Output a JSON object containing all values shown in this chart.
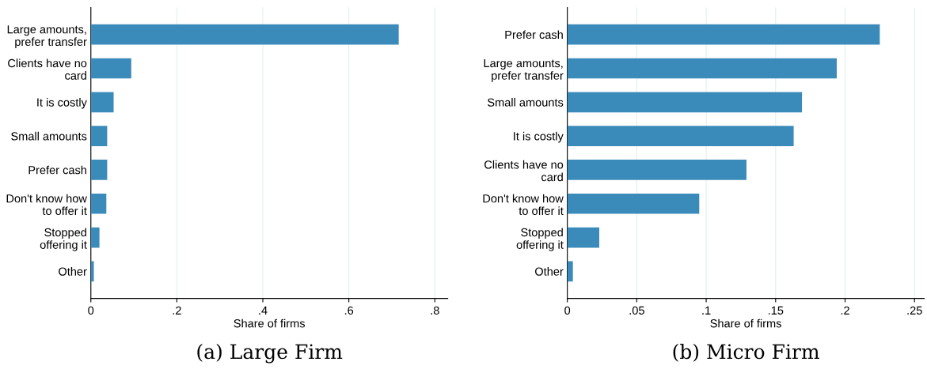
{
  "chart_data": [
    {
      "type": "bar",
      "orientation": "horizontal",
      "title": "(a) Large Firm",
      "xlabel": "Share of firms",
      "categories": [
        "Large amounts,\nprefer transfer",
        "Clients have no\ncard",
        "It is costly",
        "Small amounts",
        "Prefer cash",
        "Don't know how\nto offer it",
        "Stopped\noffering it",
        "Other"
      ],
      "values": [
        0.716,
        0.094,
        0.053,
        0.038,
        0.038,
        0.036,
        0.02,
        0.007
      ],
      "color": "#3b8bba",
      "xlim": [
        0,
        0.83
      ],
      "xticks": [
        0,
        {
          "value": 0.2,
          "label": ".2"
        },
        {
          "value": 0.4,
          "label": ".4"
        },
        {
          "value": 0.6,
          "label": ".6"
        },
        {
          "value": 0.8,
          "label": ".8"
        }
      ],
      "grid": "x"
    },
    {
      "type": "bar",
      "orientation": "horizontal",
      "title": "(b) Micro Firm",
      "xlabel": "Share of firms",
      "categories": [
        "Prefer cash",
        "Large amounts,\nprefer transfer",
        "Small amounts",
        "It is costly",
        "Clients have no\ncard",
        "Don't know how\nto offer it",
        "Stopped\noffering it",
        "Other"
      ],
      "values": [
        0.225,
        0.194,
        0.169,
        0.163,
        0.129,
        0.095,
        0.023,
        0.004
      ],
      "color": "#3b8bba",
      "xlim": [
        0,
        0.257
      ],
      "xticks": [
        0,
        {
          "value": 0.05,
          "label": ".05"
        },
        {
          "value": 0.1,
          "label": ".1"
        },
        {
          "value": 0.15,
          "label": ".15"
        },
        {
          "value": 0.2,
          "label": ".2"
        },
        {
          "value": 0.25,
          "label": ".25"
        }
      ],
      "grid": "x"
    }
  ]
}
